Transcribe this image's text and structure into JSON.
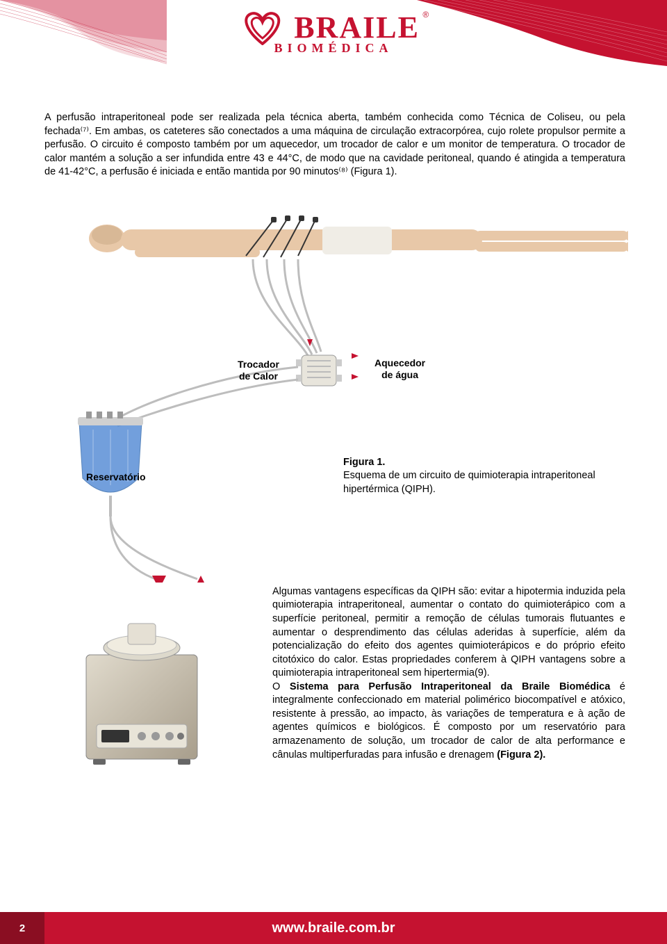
{
  "colors": {
    "brand_red": "#c51230",
    "brand_red_dark": "#a00f28",
    "wave_light": "#f5b5bf",
    "text_black": "#000000",
    "footer_red": "#c51230",
    "footer_dark": "#8a0e22",
    "reservoir_blue": "#5a8fd6",
    "body_skin": "#e8c8a8",
    "machine_gray": "#b0a89a",
    "tube_gray": "#bdbdbd",
    "arrow_red": "#c51230"
  },
  "logo": {
    "name": "BRAILE",
    "subtitle": "BIOMÉDICA",
    "reg": "®"
  },
  "paragraph1": "A perfusão intraperitoneal pode ser realizada pela técnica aberta, também conhecida como Técnica de Coliseu, ou pela fechada⁽⁷⁾. Em ambas, os cateteres são conectados a uma máquina de circulação extracorpórea, cujo rolete propulsor permite a perfusão. O circuito é composto também por um aquecedor, um trocador de calor e um monitor de temperatura. O trocador de calor mantém a solução a ser infundida entre 43 e 44°C, de modo que na cavidade peritoneal, quando é atingida a temperatura de 41-42°C, a perfusão é iniciada e então mantida por 90 minutos⁽⁸⁾ (Figura 1).",
  "diagram": {
    "labels": {
      "trocador": "Trocador\nde Calor",
      "aquecedor": "Aquecedor\nde água",
      "reservatorio": "Reservatório"
    },
    "figure_title": "Figura 1.",
    "figure_caption": "Esquema de um circuito de quimioterapia intraperitoneal hipertérmica (QIPH)."
  },
  "paragraph2_a": "Algumas vantagens específicas da QIPH são: evitar a hipotermia induzida pela quimioterapia intraperitoneal, aumentar o contato do quimioterápico com a superfície peritoneal, permitir a remoção de células tumorais flutuantes e aumentar o desprendimento das células aderidas à superfície, além da potencialização do efeito dos agentes quimioterápicos e do próprio efeito citotóxico do calor. Estas propriedades conferem à QIPH vantagens sobre a quimioterapia intraperitoneal sem hipertermia(9).",
  "paragraph2_b_bold": "Sistema para Perfusão Intraperitoneal da Braile Biomédica",
  "paragraph2_b_prefix": "O ",
  "paragraph2_b_rest": " é integralmente confeccionado em material polimérico biocompatível e atóxico, resistente à pressão, ao impacto, às variações de temperatura e à ação de agentes químicos e biológicos. É composto por um reservatório para armazenamento de solução, um trocador de calor de alta performance e cânulas multiperfuradas para infusão e drenagem ",
  "paragraph2_b_figref": "(Figura 2).",
  "footer": {
    "page": "2",
    "url": "www.braile.com.br"
  }
}
